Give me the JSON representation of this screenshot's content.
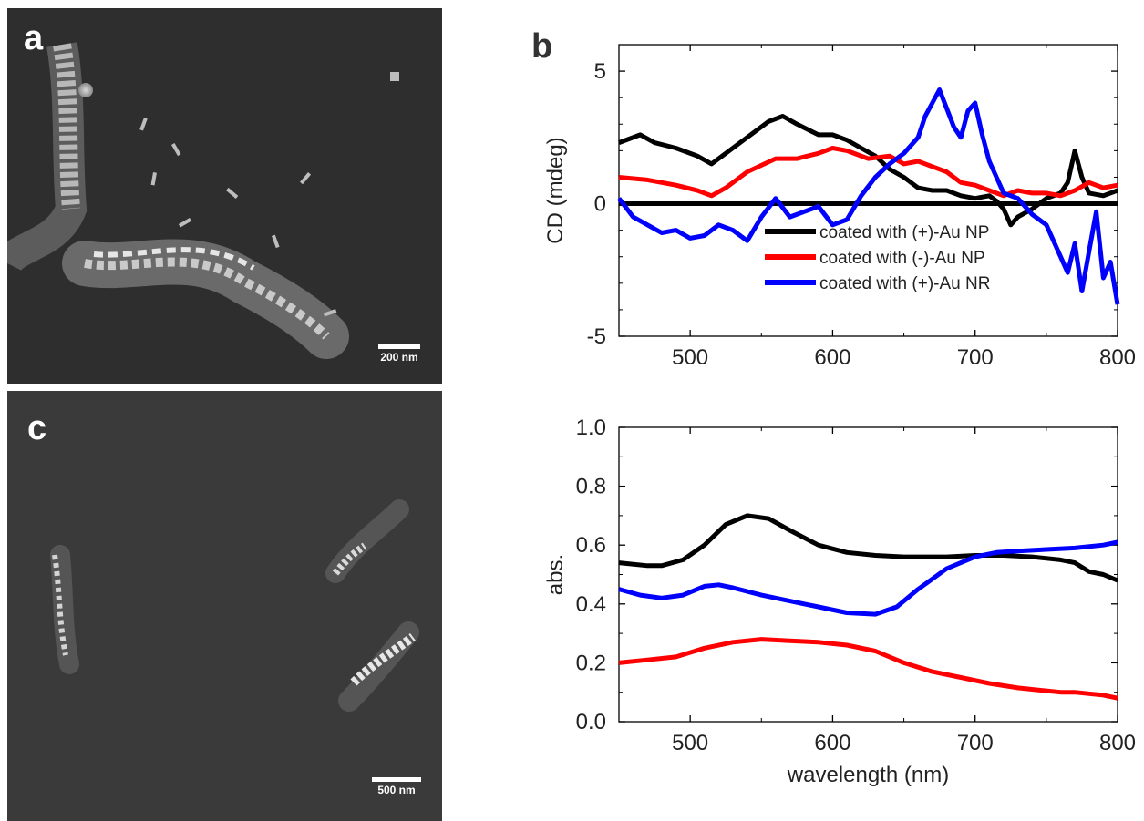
{
  "panels": {
    "a": {
      "letter": "a",
      "scalebar": "200 nm"
    },
    "b": {
      "letter": "b"
    },
    "c": {
      "letter": "c",
      "scalebar": "500 nm"
    }
  },
  "colors": {
    "black_series": "#000000",
    "red_series": "#ff0000",
    "blue_series": "#0000ff"
  },
  "chart_data": [
    {
      "type": "line",
      "ylabel": "CD (mdeg)",
      "xlabel": "",
      "xlim": [
        450,
        800
      ],
      "ylim": [
        -5,
        6
      ],
      "x_ticks": [
        500,
        600,
        700,
        800
      ],
      "y_ticks": [
        -5,
        0,
        5
      ],
      "legend_placement": "lower-right",
      "zero_line": true,
      "series": [
        {
          "name": "coated with (+)-Au NP",
          "color": "#000000",
          "x": [
            450,
            465,
            475,
            490,
            505,
            515,
            525,
            540,
            555,
            565,
            575,
            590,
            600,
            610,
            620,
            630,
            640,
            650,
            660,
            670,
            680,
            690,
            700,
            710,
            715,
            720,
            725,
            730,
            740,
            750,
            760,
            765,
            770,
            775,
            780,
            790,
            800
          ],
          "y": [
            2.3,
            2.6,
            2.3,
            2.1,
            1.8,
            1.5,
            1.9,
            2.5,
            3.1,
            3.3,
            3.0,
            2.6,
            2.6,
            2.4,
            2.1,
            1.8,
            1.3,
            1.0,
            0.6,
            0.5,
            0.5,
            0.3,
            0.2,
            0.3,
            0.1,
            -0.2,
            -0.8,
            -0.5,
            -0.2,
            0.2,
            0.4,
            0.8,
            2.0,
            1.0,
            0.4,
            0.3,
            0.5
          ]
        },
        {
          "name": "coated with (-)-Au NP",
          "color": "#ff0000",
          "x": [
            450,
            470,
            490,
            505,
            515,
            525,
            540,
            560,
            575,
            590,
            600,
            610,
            625,
            640,
            650,
            660,
            670,
            680,
            690,
            700,
            710,
            720,
            730,
            740,
            750,
            760,
            770,
            780,
            790,
            800
          ],
          "y": [
            1.0,
            0.9,
            0.7,
            0.5,
            0.3,
            0.6,
            1.2,
            1.7,
            1.7,
            1.9,
            2.1,
            2.0,
            1.7,
            1.8,
            1.5,
            1.6,
            1.4,
            1.2,
            0.8,
            0.7,
            0.5,
            0.3,
            0.5,
            0.4,
            0.4,
            0.3,
            0.5,
            0.8,
            0.6,
            0.7
          ]
        },
        {
          "name": "coated with (+)-Au NR",
          "color": "#0000ff",
          "x": [
            450,
            460,
            470,
            480,
            490,
            500,
            510,
            520,
            530,
            540,
            550,
            560,
            570,
            580,
            590,
            600,
            610,
            620,
            630,
            640,
            650,
            660,
            665,
            670,
            675,
            680,
            685,
            690,
            695,
            700,
            705,
            710,
            720,
            730,
            740,
            750,
            760,
            765,
            770,
            775,
            780,
            785,
            790,
            795,
            800
          ],
          "y": [
            0.2,
            -0.5,
            -0.8,
            -1.1,
            -1.0,
            -1.3,
            -1.2,
            -0.8,
            -1.0,
            -1.4,
            -0.5,
            0.2,
            -0.5,
            -0.3,
            -0.1,
            -0.8,
            -0.6,
            0.3,
            1.0,
            1.5,
            1.9,
            2.5,
            3.3,
            3.8,
            4.3,
            3.6,
            2.9,
            2.5,
            3.5,
            3.8,
            2.6,
            1.6,
            0.4,
            0.2,
            -0.4,
            -0.8,
            -2.0,
            -2.6,
            -1.5,
            -3.3,
            -1.8,
            -0.3,
            -2.8,
            -2.2,
            -3.8
          ]
        }
      ]
    },
    {
      "type": "line",
      "xlabel": "wavelength (nm)",
      "ylabel": "abs.",
      "xlim": [
        450,
        800
      ],
      "ylim": [
        0.0,
        1.0
      ],
      "x_ticks": [
        500,
        600,
        700,
        800
      ],
      "y_ticks": [
        0.0,
        0.2,
        0.4,
        0.6,
        0.8,
        1.0
      ],
      "series": [
        {
          "color": "#000000",
          "x": [
            450,
            470,
            480,
            495,
            510,
            525,
            540,
            555,
            570,
            590,
            610,
            630,
            650,
            680,
            700,
            720,
            740,
            760,
            770,
            780,
            790,
            800
          ],
          "y": [
            0.54,
            0.53,
            0.53,
            0.55,
            0.6,
            0.67,
            0.7,
            0.69,
            0.65,
            0.6,
            0.575,
            0.565,
            0.56,
            0.56,
            0.565,
            0.565,
            0.56,
            0.55,
            0.54,
            0.51,
            0.5,
            0.48
          ]
        },
        {
          "color": "#ff0000",
          "x": [
            450,
            470,
            490,
            510,
            530,
            550,
            570,
            590,
            610,
            630,
            650,
            670,
            690,
            710,
            730,
            750,
            760,
            770,
            780,
            790,
            800
          ],
          "y": [
            0.2,
            0.21,
            0.22,
            0.25,
            0.27,
            0.28,
            0.275,
            0.27,
            0.26,
            0.24,
            0.2,
            0.17,
            0.15,
            0.13,
            0.115,
            0.105,
            0.1,
            0.1,
            0.095,
            0.09,
            0.08
          ]
        },
        {
          "color": "#0000ff",
          "x": [
            450,
            465,
            480,
            495,
            510,
            520,
            530,
            550,
            570,
            590,
            610,
            630,
            645,
            660,
            680,
            700,
            715,
            730,
            750,
            770,
            790,
            800
          ],
          "y": [
            0.45,
            0.43,
            0.42,
            0.43,
            0.46,
            0.465,
            0.455,
            0.43,
            0.41,
            0.39,
            0.37,
            0.365,
            0.39,
            0.45,
            0.52,
            0.56,
            0.575,
            0.58,
            0.585,
            0.59,
            0.6,
            0.61
          ]
        }
      ]
    }
  ]
}
